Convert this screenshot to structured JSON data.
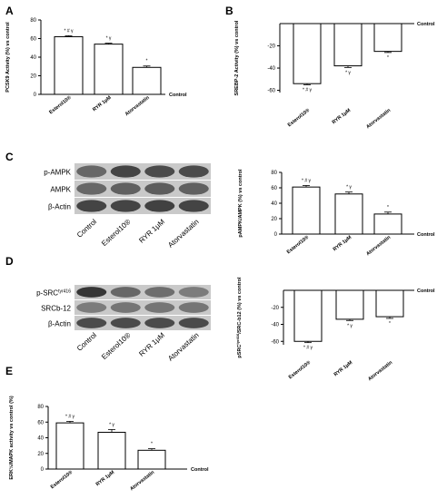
{
  "panels": {
    "A": "A",
    "B": "B",
    "C": "C",
    "D": "D",
    "E": "E"
  },
  "blots": {
    "C": {
      "rows": [
        "p-AMPK",
        "AMPK",
        "β-Actin"
      ],
      "lanes": [
        "Control",
        "Esterol10®",
        "RYR 1μM",
        "Atorvastatin"
      ]
    },
    "D": {
      "rows": [
        "p-SRC",
        "SRCb-12",
        "β-Actin"
      ],
      "row_sup": [
        "tyr416",
        "",
        ""
      ],
      "lanes": [
        "Control",
        "Esterol10®",
        "RYR 1μM",
        "Atorvastatin"
      ]
    }
  },
  "chart_data": [
    {
      "id": "A",
      "type": "bar",
      "ylabel": "PCSK9 Activity (%) vs control",
      "baseline_label": "Control",
      "categories": [
        "Esterol10®",
        "RYR 1μM",
        "Atorvastatin"
      ],
      "values": [
        62,
        54,
        29
      ],
      "errors": [
        1,
        1,
        1.5
      ],
      "annotations": [
        "* # γ",
        "* γ",
        "*"
      ],
      "yticks": [
        0,
        20,
        40,
        60,
        80
      ],
      "ylim": [
        0,
        80
      ]
    },
    {
      "id": "B",
      "type": "bar",
      "ylabel": "SREBP-2 Activity (%) vs control",
      "baseline_label": "Control",
      "categories": [
        "Esterol10®",
        "RYR 1μM",
        "Atorvastatin"
      ],
      "values": [
        -54,
        -38,
        -25
      ],
      "errors": [
        1,
        1.5,
        1
      ],
      "annotations": [
        "* # γ",
        "* γ",
        "*"
      ],
      "yticks": [
        -60,
        -40,
        -20
      ],
      "ylim": [
        -62,
        0
      ]
    },
    {
      "id": "C",
      "type": "bar",
      "ylabel": "pAMPK/AMPK (%) vs control",
      "baseline_label": "Control",
      "categories": [
        "Esterol10®",
        "RYR 1μM",
        "Atorvastatin"
      ],
      "values": [
        61,
        52,
        26
      ],
      "errors": [
        2,
        2.5,
        2.5
      ],
      "annotations": [
        "* # γ",
        "* γ",
        "*"
      ],
      "yticks": [
        0,
        20,
        40,
        60,
        80
      ],
      "ylim": [
        0,
        80
      ]
    },
    {
      "id": "D",
      "type": "bar",
      "ylabel_main": "pSRC",
      "ylabel_sup": "tyr416",
      "ylabel_rest": "/SRC-b12 (%) vs control",
      "baseline_label": "Control",
      "categories": [
        "Esterol10®",
        "RYR 1μM",
        "Atorvastatin"
      ],
      "values": [
        -60,
        -34,
        -31
      ],
      "errors": [
        1.5,
        1.5,
        2
      ],
      "annotations": [
        "* # γ",
        "* γ",
        "*"
      ],
      "yticks": [
        -60,
        -40,
        -20
      ],
      "ylim": [
        -64,
        0
      ]
    },
    {
      "id": "E",
      "type": "bar",
      "ylabel": "ERK½/MAPK activity vs control (%)",
      "baseline_label": "Control",
      "categories": [
        "Esterol10®",
        "RYR 1μM",
        "Atorvastatin"
      ],
      "values": [
        59,
        47,
        24
      ],
      "errors": [
        2,
        3.5,
        2
      ],
      "annotations": [
        "* # γ",
        "* γ",
        "*"
      ],
      "yticks": [
        0,
        20,
        40,
        60,
        80
      ],
      "ylim": [
        0,
        80
      ]
    }
  ]
}
